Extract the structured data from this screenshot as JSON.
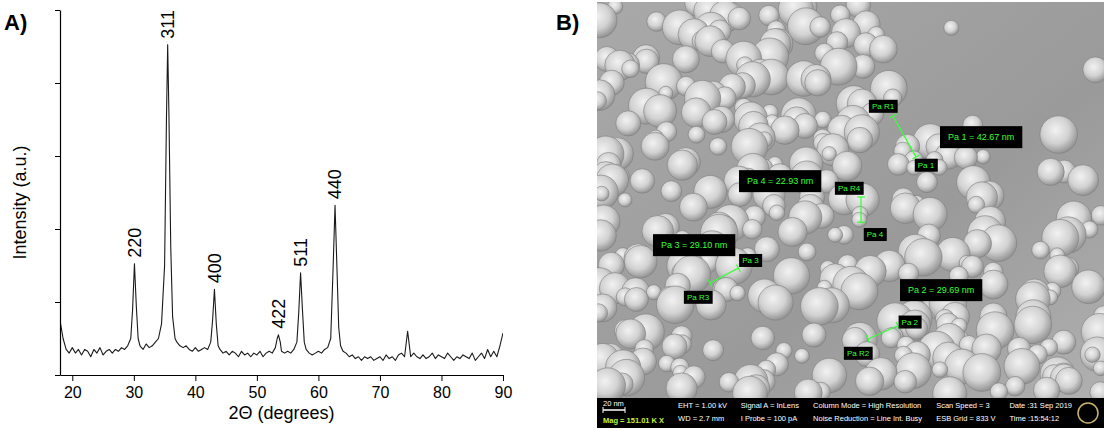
{
  "chart_data": {
    "type": "line",
    "panel": "A)",
    "x_label": "2Θ (degrees)",
    "y_label": "Intensity (a.u.)",
    "x": [
      18,
      18.5,
      19,
      19.5,
      20,
      20.5,
      21,
      21.5,
      22,
      22.5,
      23,
      23.5,
      24,
      24.5,
      25,
      25.5,
      26,
      26.5,
      27,
      27.5,
      28,
      28.5,
      29,
      29.5,
      29.8,
      30.1,
      30.4,
      30.7,
      31,
      31.5,
      32,
      32.5,
      33,
      33.5,
      34,
      34.5,
      35,
      35.3,
      35.5,
      35.7,
      36,
      36.3,
      36.7,
      37,
      37.5,
      38,
      38.5,
      39,
      39.5,
      40,
      40.5,
      41,
      41.5,
      42,
      42.5,
      42.8,
      43.1,
      43.4,
      43.7,
      44,
      44.5,
      45,
      45.5,
      46,
      46.5,
      47,
      47.5,
      48,
      48.5,
      49,
      49.5,
      50,
      50.5,
      51,
      51.5,
      52,
      52.5,
      53,
      53.3,
      53.5,
      53.8,
      54,
      54.5,
      55,
      55.5,
      56,
      56.5,
      56.8,
      57.1,
      57.4,
      57.7,
      58,
      58.5,
      59,
      59.5,
      60,
      60.5,
      61,
      61.5,
      62,
      62.4,
      62.7,
      63,
      63.3,
      63.6,
      64,
      64.5,
      65,
      65.5,
      66,
      66.5,
      67,
      67.5,
      68,
      68.5,
      69,
      69.5,
      70,
      70.5,
      71,
      71.5,
      72,
      72.5,
      73,
      73.5,
      74,
      74.5,
      75,
      75.5,
      76,
      76.5,
      77,
      77.5,
      78,
      78.5,
      79,
      79.5,
      80,
      80.5,
      81,
      81.5,
      82,
      82.5,
      83,
      83.5,
      84,
      84.5,
      85,
      85.5,
      86,
      86.5,
      87,
      87.5,
      88,
      88.5,
      89,
      89.5,
      90
    ],
    "values": [
      15,
      10,
      7,
      6,
      7.5,
      6,
      7,
      5.5,
      7,
      6.5,
      5,
      7,
      6,
      7.5,
      5.5,
      6.5,
      7,
      6,
      7,
      6.5,
      7.5,
      7,
      8,
      10,
      18,
      30.5,
      19,
      10,
      8,
      7,
      8.5,
      7.5,
      8,
      9,
      10,
      14,
      30,
      70,
      90.5,
      72,
      35,
      16,
      10,
      9,
      8,
      7.5,
      8,
      7,
      6.5,
      7.5,
      6.5,
      7,
      7.5,
      7,
      9,
      15,
      23.5,
      14,
      8,
      7,
      6,
      6.5,
      5.5,
      6.5,
      6,
      5,
      6.5,
      5.5,
      6,
      5,
      6,
      5.5,
      6.5,
      5,
      6,
      6.5,
      6,
      7.5,
      10,
      11,
      9,
      6.5,
      6,
      6.5,
      6,
      7,
      9,
      17,
      28,
      18,
      9,
      7,
      6,
      5.5,
      6,
      6.5,
      6,
      7,
      7.5,
      10,
      30,
      46.5,
      30,
      13,
      8,
      6.5,
      6,
      5,
      5.5,
      4.5,
      5,
      4,
      5,
      4.5,
      5,
      4,
      4.5,
      5,
      4,
      5.5,
      4.5,
      5,
      4,
      5.5,
      6,
      5,
      12,
      5,
      6,
      5,
      4.5,
      5.5,
      4.5,
      5,
      6,
      4.5,
      5.5,
      5,
      4.5,
      6,
      5,
      4,
      5,
      4.5,
      5.5,
      5,
      4.5,
      6,
      4,
      5,
      6,
      4.5,
      7,
      5,
      6.5,
      5,
      8,
      11.5
    ],
    "color": "#1a1a1a",
    "xlim": [
      18,
      90
    ],
    "xticks": [
      20,
      30,
      40,
      50,
      60,
      70,
      80,
      90
    ],
    "ylim": [
      0,
      100
    ],
    "yticks": [
      0,
      20,
      40,
      60,
      80,
      100
    ],
    "tick_labels": "x",
    "annotations": [
      {
        "text": "220",
        "x": 30.1,
        "y": 30.5
      },
      {
        "text": "311",
        "x": 35.5,
        "y": 90.5
      },
      {
        "text": "400",
        "x": 43.1,
        "y": 23.5
      },
      {
        "text": "422",
        "x": 53.5,
        "y": 11
      },
      {
        "text": "511",
        "x": 57.1,
        "y": 28
      },
      {
        "text": "440",
        "x": 62.7,
        "y": 46.5
      }
    ]
  },
  "image_panel": {
    "panel": "B)",
    "scale_bar": {
      "value": 20,
      "label": "20 nm"
    },
    "magnification": "Mag = 151.01 K X",
    "measurements": [
      {
        "label": "Pa 1 = 42.67 nm",
        "value": 42.67,
        "start": "Pa R1",
        "end": "Pa 1"
      },
      {
        "label": "Pa 4 = 22.93 nm",
        "value": 22.93,
        "start": "Pa R4",
        "end": "Pa 4"
      },
      {
        "label": "Pa 3 = 29.10 nm",
        "value": 29.1,
        "start": "Pa R3",
        "end": "Pa 3"
      },
      {
        "label": "Pa 2 = 29.69 nm",
        "value": 29.69,
        "start": "Pa R2",
        "end": "Pa 2"
      }
    ],
    "info_columns": [
      [
        "EHT = 1.00 kV",
        "WD = 2.7 mm"
      ],
      [
        "Signal A = InLens",
        "I Probe = 100 pA"
      ],
      [
        "Column Mode = High Resolution",
        "Noise Reduction = Line Int. Busy"
      ],
      [
        "Scan Speed = 3",
        "ESB Grid = 833 V"
      ],
      [
        "Date :31 Sep 2019",
        "Time :15:54:12"
      ]
    ]
  }
}
